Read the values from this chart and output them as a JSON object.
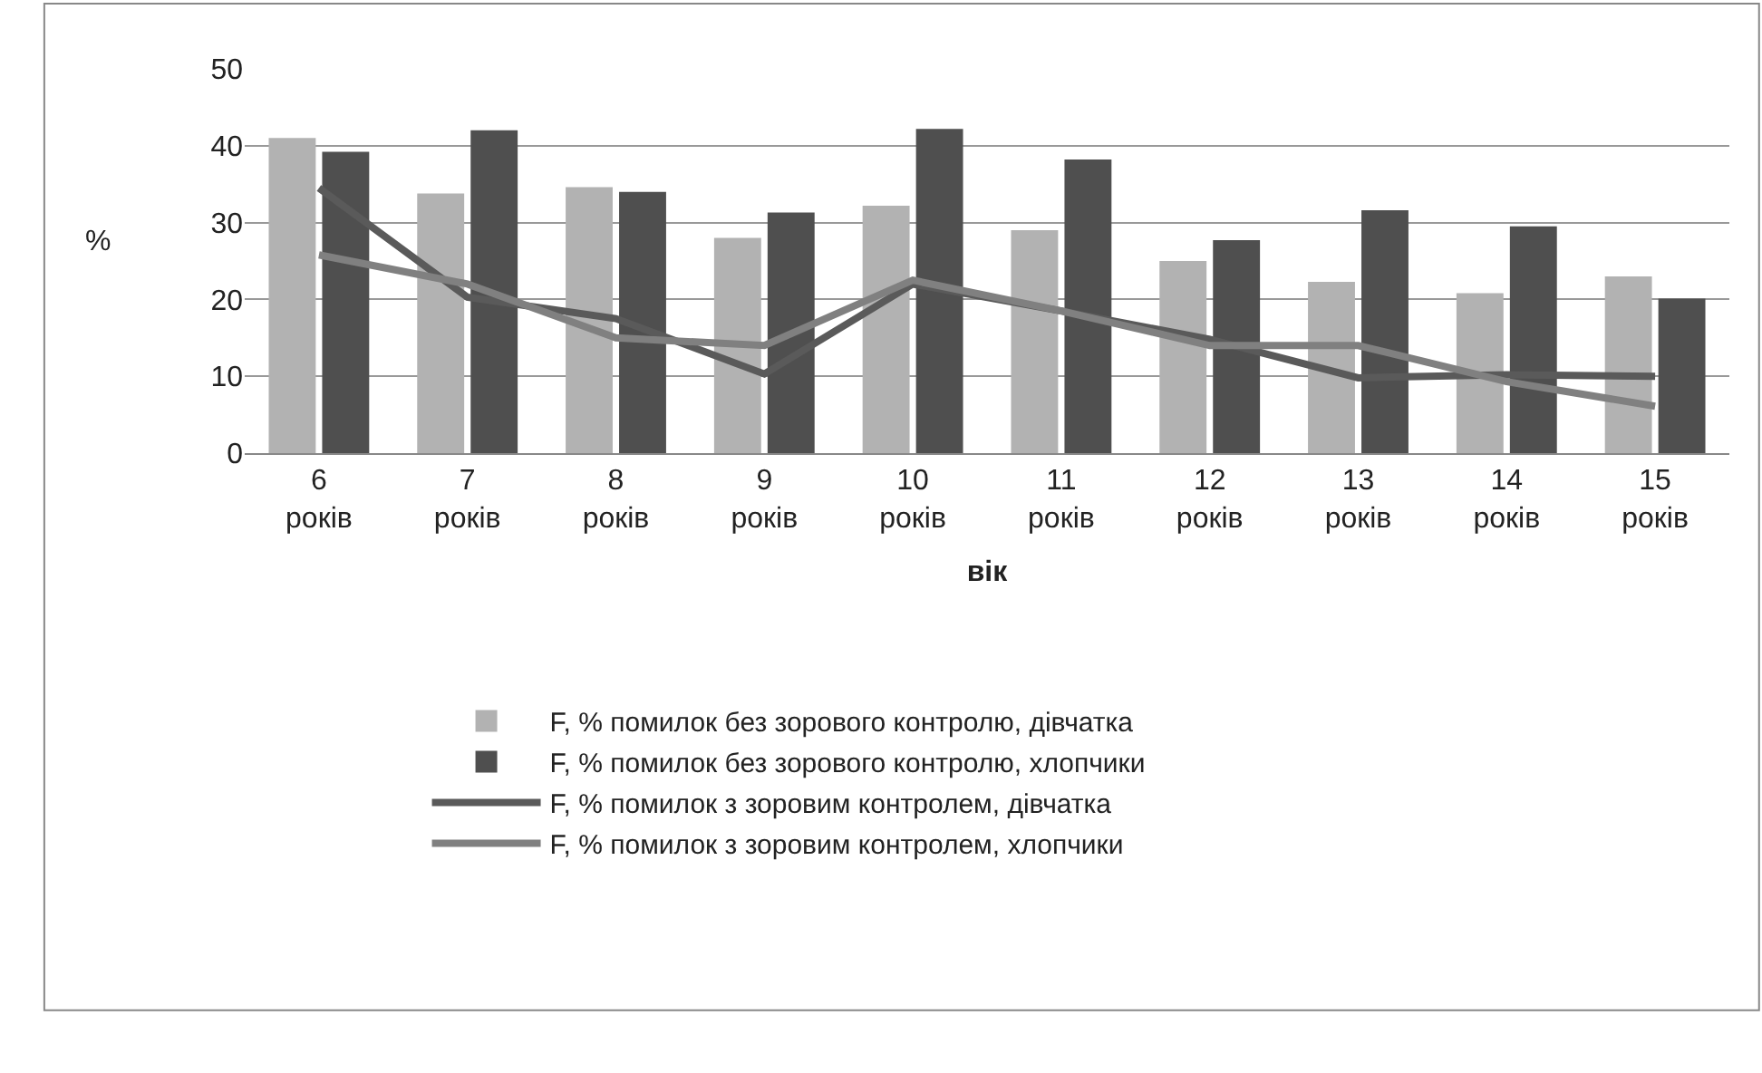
{
  "chart_data": {
    "type": "bar",
    "xlabel": "вік",
    "ylabel": "%",
    "categories": [
      "6 років",
      "7 років",
      "8 років",
      "9 років",
      "10 років",
      "11 років",
      "12 років",
      "13 років",
      "14 років",
      "15 років"
    ],
    "series": [
      {
        "name": "F, % помилок без зорового контролю, дівчатка",
        "color": "#b2b2b2",
        "values": [
          41,
          33.8,
          34.6,
          28,
          32.2,
          29,
          25,
          22.3,
          20.8,
          23
        ]
      },
      {
        "name": "F, % помилок без зорового контролю, хлопчики",
        "color": "#4f4f4f",
        "values": [
          39.2,
          42,
          34,
          31.3,
          42.2,
          38.2,
          27.7,
          31.6,
          29.5,
          20.1
        ]
      },
      {
        "name": "F, % помилок з зоровим контролем, дівчатка",
        "type": "line",
        "color": "#5a5a5a",
        "values": [
          34.5,
          20.3,
          17.5,
          10.3,
          22,
          18.5,
          14.8,
          9.8,
          10.2,
          10
        ]
      },
      {
        "name": "F, % помилок з зоровим контролем, хлопчики",
        "type": "line",
        "color": "#808080",
        "values": [
          25.8,
          22,
          15,
          14,
          22.5,
          18.5,
          14,
          14,
          9.3,
          6.1
        ]
      }
    ],
    "ylim": [
      0,
      50
    ],
    "yticks": [
      0,
      10,
      20,
      30,
      40,
      50
    ],
    "grid": "y",
    "legend": "bottom",
    "marker": "none"
  }
}
